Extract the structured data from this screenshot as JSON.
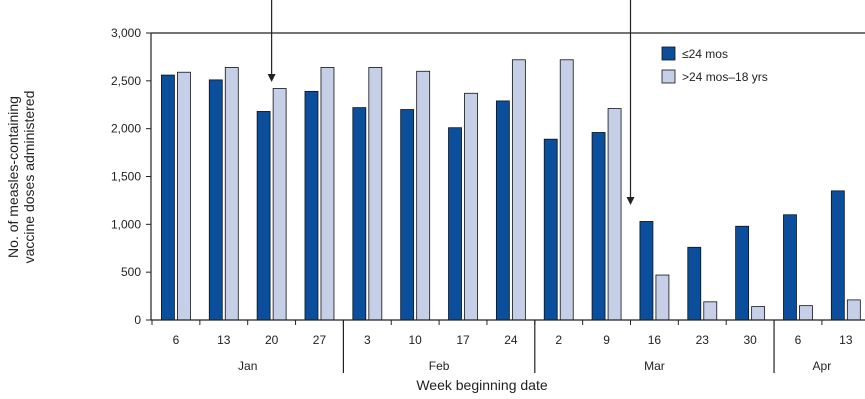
{
  "chart_data": {
    "type": "bar",
    "ylabel_lines": [
      "No. of measles-containing",
      "vaccine doses administered"
    ],
    "xlabel": "Week beginning date",
    "ylim": [
      0,
      3000
    ],
    "yticks": [
      0,
      500,
      1000,
      1500,
      2000,
      2500,
      3000
    ],
    "ytick_labels": [
      "0",
      "500",
      "1,000",
      "1,500",
      "2,000",
      "2,500",
      "3,000"
    ],
    "categories": [
      "6",
      "13",
      "20",
      "27",
      "3",
      "10",
      "17",
      "24",
      "2",
      "9",
      "16",
      "23",
      "30",
      "6",
      "13"
    ],
    "months": [
      {
        "label": "Jan",
        "first": 0,
        "last": 3
      },
      {
        "label": "Feb",
        "first": 4,
        "last": 7
      },
      {
        "label": "Mar",
        "first": 8,
        "last": 12
      },
      {
        "label": "Apr",
        "first": 13,
        "last": 14
      }
    ],
    "series": [
      {
        "name": "≤24 mos",
        "color": "#0b4f9c",
        "values": [
          2560,
          2510,
          2180,
          2390,
          2220,
          2200,
          2010,
          2290,
          1890,
          1960,
          1030,
          760,
          980,
          1100,
          1350
        ]
      },
      {
        "name": ">24 mos–18 yrs",
        "color": "#c5cfe8",
        "values": [
          2590,
          2640,
          2420,
          2640,
          2640,
          2600,
          2370,
          2720,
          2720,
          2210,
          470,
          190,
          140,
          150,
          210
        ]
      }
    ],
    "annotations": [
      {
        "type": "arrow-down",
        "category_index": 2
      },
      {
        "type": "arrow-down",
        "category_index": 10
      }
    ],
    "grid": false,
    "legend_position": "top-right"
  }
}
